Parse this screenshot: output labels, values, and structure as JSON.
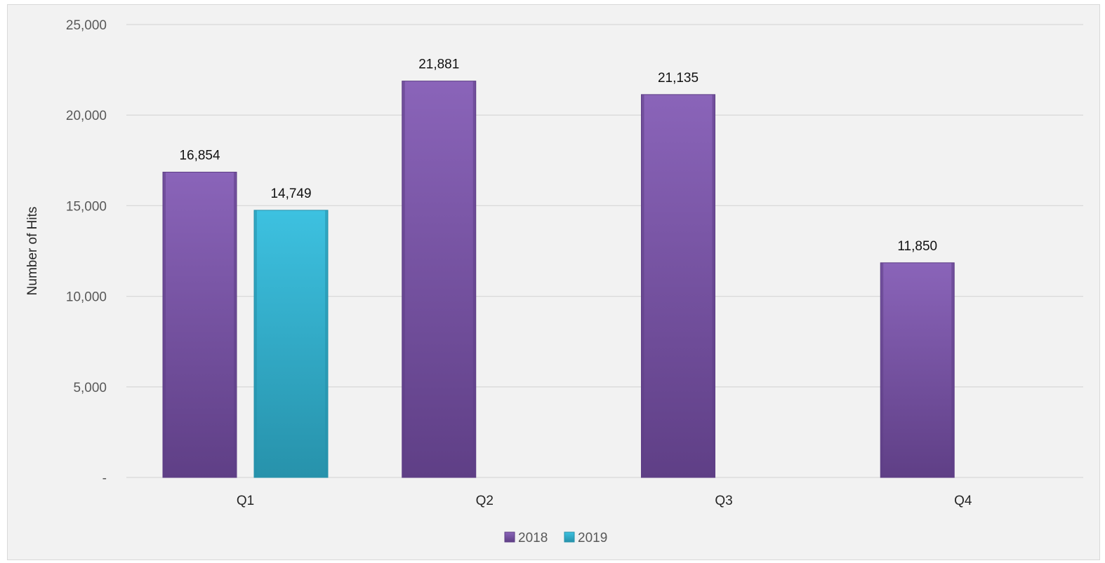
{
  "chart_data": {
    "type": "bar",
    "categories": [
      "Q1",
      "Q2",
      "Q3",
      "Q4"
    ],
    "series": [
      {
        "name": "2018",
        "values": [
          16854,
          21881,
          21135,
          11850
        ],
        "color": "#7a52a6",
        "color_light": "#8a64b9",
        "color_dark": "#5f3f86"
      },
      {
        "name": "2019",
        "values": [
          14749,
          null,
          null,
          null
        ],
        "color": "#31b0cf",
        "color_light": "#3dc1e0",
        "color_dark": "#2792ab"
      }
    ],
    "data_labels": [
      [
        "16,854",
        "21,881",
        "21,135",
        "11,850"
      ],
      [
        "14,749",
        null,
        null,
        null
      ]
    ],
    "title": "",
    "xlabel": "",
    "ylabel": "Number of Hits",
    "ylim": [
      0,
      25000
    ],
    "yticks": [
      0,
      5000,
      10000,
      15000,
      20000,
      25000
    ],
    "ytick_labels": [
      "-",
      "5,000",
      "10,000",
      "15,000",
      "20,000",
      "25,000"
    ],
    "grid": true,
    "legend": "bottom",
    "background": "#f2f2f2",
    "gridline_color": "#d9d9d9"
  }
}
